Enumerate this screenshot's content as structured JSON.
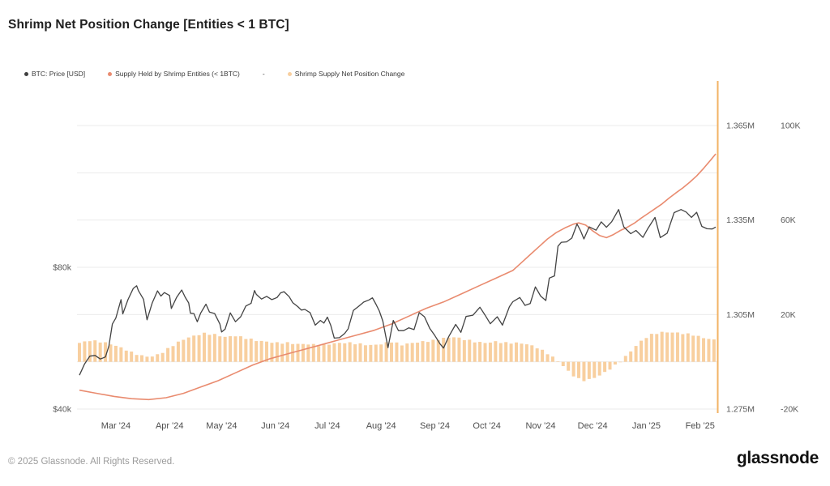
{
  "page": {
    "title": "Shrimp Net Position Change [Entities < 1 BTC]",
    "footer": "© 2025 Glassnode. All Rights Reserved.",
    "brand": "glassnode"
  },
  "legend": [
    {
      "label": "BTC: Price [USD]",
      "color": "#3f3f3f"
    },
    {
      "label": "Supply Held by Shrimp Entities (< 1BTC)",
      "color": "#e98b6f"
    },
    {
      "label": "-",
      "color": null
    },
    {
      "label": "Shrimp Supply Net Position Change",
      "color": "#f8cf9f"
    }
  ],
  "chart_data": {
    "type": "line+bar",
    "x_unit": "days since 2024-02-09",
    "x_ticks": [
      {
        "label": "Mar '24",
        "day": 21
      },
      {
        "label": "Apr '24",
        "day": 52
      },
      {
        "label": "May '24",
        "day": 82
      },
      {
        "label": "Jun '24",
        "day": 113
      },
      {
        "label": "Jul '24",
        "day": 143
      },
      {
        "label": "Aug '24",
        "day": 174
      },
      {
        "label": "Sep '24",
        "day": 205
      },
      {
        "label": "Oct '24",
        "day": 235
      },
      {
        "label": "Nov '24",
        "day": 266
      },
      {
        "label": "Dec '24",
        "day": 296
      },
      {
        "label": "Jan '25",
        "day": 327
      },
      {
        "label": "Feb '25",
        "day": 358
      }
    ],
    "axes": {
      "price_left": {
        "scale": "log2",
        "unit": "USD (thousands)",
        "labels": [
          {
            "text": "$80k",
            "value": 80
          },
          {
            "text": "$40k",
            "value": 40
          }
        ]
      },
      "supply_right": {
        "scale": "linear",
        "unit": "BTC (millions)",
        "labels": [
          {
            "text": "1.365M",
            "value": 1.365
          },
          {
            "text": "1.335M",
            "value": 1.335
          },
          {
            "text": "1.305M",
            "value": 1.305
          },
          {
            "text": "1.275M",
            "value": 1.275
          }
        ]
      },
      "net_right": {
        "scale": "linear",
        "unit": "BTC (thousands)",
        "labels": [
          {
            "text": "100K",
            "value": 100
          },
          {
            "text": "60K",
            "value": 60
          },
          {
            "text": "20K",
            "value": 20
          },
          {
            "text": "-20K",
            "value": -20
          }
        ]
      }
    },
    "colors": {
      "price_line": "#434343",
      "supply_line": "#e98b6f",
      "net_bars": "#f8cf9f",
      "gridline": "#ebebeb",
      "edge_line": "#f2b263",
      "axis_text": "#5a5a5a",
      "tick_text": "#4d4d4d"
    },
    "series": {
      "btc_price_usd_k": {
        "name": "BTC: Price [USD]",
        "kind": "line",
        "points": [
          [
            0,
            47.2
          ],
          [
            3,
            49.9
          ],
          [
            6,
            51.8
          ],
          [
            9,
            52.0
          ],
          [
            12,
            51.1
          ],
          [
            15,
            51.6
          ],
          [
            17,
            54.5
          ],
          [
            19,
            60.6
          ],
          [
            21,
            62.4
          ],
          [
            24,
            68.3
          ],
          [
            25,
            63.7
          ],
          [
            28,
            68.3
          ],
          [
            31,
            72.1
          ],
          [
            33,
            73.1
          ],
          [
            34,
            71.4
          ],
          [
            37,
            68.4
          ],
          [
            39,
            61.9
          ],
          [
            42,
            67.2
          ],
          [
            45,
            71.3
          ],
          [
            47,
            69.5
          ],
          [
            49,
            70.7
          ],
          [
            52,
            69.7
          ],
          [
            53,
            65.4
          ],
          [
            56,
            69.0
          ],
          [
            59,
            71.6
          ],
          [
            61,
            69.1
          ],
          [
            63,
            67.2
          ],
          [
            64,
            63.9
          ],
          [
            66,
            63.8
          ],
          [
            68,
            61.3
          ],
          [
            70,
            64.0
          ],
          [
            73,
            66.8
          ],
          [
            75,
            64.3
          ],
          [
            78,
            63.8
          ],
          [
            81,
            60.6
          ],
          [
            82,
            58.3
          ],
          [
            84,
            59.1
          ],
          [
            87,
            64.0
          ],
          [
            90,
            61.3
          ],
          [
            93,
            62.8
          ],
          [
            96,
            66.2
          ],
          [
            99,
            67.1
          ],
          [
            101,
            71.4
          ],
          [
            102,
            70.1
          ],
          [
            105,
            68.5
          ],
          [
            108,
            69.4
          ],
          [
            111,
            68.3
          ],
          [
            114,
            69.0
          ],
          [
            116,
            70.6
          ],
          [
            118,
            71.0
          ],
          [
            121,
            69.3
          ],
          [
            123,
            67.3
          ],
          [
            126,
            66.0
          ],
          [
            128,
            64.9
          ],
          [
            130,
            65.1
          ],
          [
            133,
            64.1
          ],
          [
            136,
            60.3
          ],
          [
            139,
            61.7
          ],
          [
            141,
            60.9
          ],
          [
            143,
            62.7
          ],
          [
            145,
            60.2
          ],
          [
            147,
            56.6
          ],
          [
            150,
            56.7
          ],
          [
            153,
            57.9
          ],
          [
            155,
            59.2
          ],
          [
            158,
            64.8
          ],
          [
            161,
            66.1
          ],
          [
            164,
            67.5
          ],
          [
            167,
            68.2
          ],
          [
            169,
            68.9
          ],
          [
            171,
            66.8
          ],
          [
            173,
            64.6
          ],
          [
            175,
            61.5
          ],
          [
            178,
            54.0
          ],
          [
            181,
            61.7
          ],
          [
            184,
            58.7
          ],
          [
            187,
            58.7
          ],
          [
            190,
            59.5
          ],
          [
            193,
            59.0
          ],
          [
            196,
            64.1
          ],
          [
            199,
            62.8
          ],
          [
            202,
            59.4
          ],
          [
            205,
            57.3
          ],
          [
            208,
            55.0
          ],
          [
            210,
            53.9
          ],
          [
            213,
            57.0
          ],
          [
            217,
            60.5
          ],
          [
            220,
            58.2
          ],
          [
            223,
            62.9
          ],
          [
            227,
            63.3
          ],
          [
            231,
            65.8
          ],
          [
            234,
            63.3
          ],
          [
            237,
            60.7
          ],
          [
            241,
            62.8
          ],
          [
            244,
            60.3
          ],
          [
            248,
            66.0
          ],
          [
            250,
            67.6
          ],
          [
            254,
            69.0
          ],
          [
            257,
            66.4
          ],
          [
            260,
            67.0
          ],
          [
            263,
            72.7
          ],
          [
            266,
            69.5
          ],
          [
            269,
            68.0
          ],
          [
            271,
            75.9
          ],
          [
            274,
            76.7
          ],
          [
            276,
            88.7
          ],
          [
            278,
            90.4
          ],
          [
            281,
            90.6
          ],
          [
            284,
            92.3
          ],
          [
            287,
            98.9
          ],
          [
            289,
            95.7
          ],
          [
            291,
            91.9
          ],
          [
            294,
            97.5
          ],
          [
            298,
            95.9
          ],
          [
            301,
            99.9
          ],
          [
            304,
            97.3
          ],
          [
            307,
            100.0
          ],
          [
            311,
            106.1
          ],
          [
            314,
            97.5
          ],
          [
            318,
            94.3
          ],
          [
            321,
            95.8
          ],
          [
            325,
            92.6
          ],
          [
            328,
            96.9
          ],
          [
            332,
            102.1
          ],
          [
            335,
            92.5
          ],
          [
            339,
            94.5
          ],
          [
            343,
            104.5
          ],
          [
            347,
            106.1
          ],
          [
            350,
            104.8
          ],
          [
            353,
            102.1
          ],
          [
            356,
            104.7
          ],
          [
            359,
            97.7
          ],
          [
            362,
            96.6
          ],
          [
            365,
            96.5
          ],
          [
            367,
            97.4
          ]
        ]
      },
      "shrimp_supply_m": {
        "name": "Supply Held by Shrimp Entities (< 1BTC)",
        "kind": "line",
        "points": [
          [
            0,
            1.281
          ],
          [
            10,
            1.28
          ],
          [
            20,
            1.279
          ],
          [
            30,
            1.2783
          ],
          [
            40,
            1.278
          ],
          [
            50,
            1.2786
          ],
          [
            60,
            1.28
          ],
          [
            70,
            1.282
          ],
          [
            80,
            1.284
          ],
          [
            90,
            1.2865
          ],
          [
            100,
            1.289
          ],
          [
            110,
            1.291
          ],
          [
            120,
            1.2925
          ],
          [
            130,
            1.294
          ],
          [
            140,
            1.2955
          ],
          [
            150,
            1.297
          ],
          [
            160,
            1.2985
          ],
          [
            170,
            1.3
          ],
          [
            180,
            1.302
          ],
          [
            190,
            1.3045
          ],
          [
            200,
            1.307
          ],
          [
            210,
            1.309
          ],
          [
            220,
            1.3115
          ],
          [
            230,
            1.314
          ],
          [
            240,
            1.3165
          ],
          [
            250,
            1.319
          ],
          [
            255,
            1.3215
          ],
          [
            260,
            1.324
          ],
          [
            265,
            1.3265
          ],
          [
            270,
            1.329
          ],
          [
            275,
            1.331
          ],
          [
            280,
            1.3325
          ],
          [
            285,
            1.3337
          ],
          [
            288,
            1.3341
          ],
          [
            292,
            1.3334
          ],
          [
            296,
            1.3316
          ],
          [
            300,
            1.3301
          ],
          [
            304,
            1.3294
          ],
          [
            308,
            1.3304
          ],
          [
            312,
            1.3317
          ],
          [
            316,
            1.3327
          ],
          [
            320,
            1.334
          ],
          [
            324,
            1.3356
          ],
          [
            328,
            1.3371
          ],
          [
            332,
            1.3386
          ],
          [
            336,
            1.3401
          ],
          [
            340,
            1.3419
          ],
          [
            344,
            1.3436
          ],
          [
            348,
            1.3452
          ],
          [
            352,
            1.347
          ],
          [
            356,
            1.349
          ],
          [
            360,
            1.3514
          ],
          [
            364,
            1.354
          ],
          [
            367,
            1.356
          ]
        ]
      },
      "net_position_change_k": {
        "name": "Shrimp Supply Net Position Change",
        "kind": "bar",
        "bar_interval_days": 3,
        "points": [
          [
            0,
            8
          ],
          [
            6,
            9
          ],
          [
            12,
            8.5
          ],
          [
            18,
            7.5
          ],
          [
            24,
            6
          ],
          [
            30,
            4
          ],
          [
            36,
            2.5
          ],
          [
            42,
            2.2
          ],
          [
            48,
            4
          ],
          [
            54,
            7
          ],
          [
            60,
            9.5
          ],
          [
            66,
            11
          ],
          [
            72,
            12
          ],
          [
            78,
            11.5
          ],
          [
            84,
            10.5
          ],
          [
            90,
            11
          ],
          [
            96,
            10
          ],
          [
            102,
            9
          ],
          [
            108,
            8.5
          ],
          [
            114,
            8
          ],
          [
            120,
            8
          ],
          [
            126,
            7.5
          ],
          [
            132,
            7.5
          ],
          [
            138,
            7
          ],
          [
            144,
            7.5
          ],
          [
            150,
            8
          ],
          [
            156,
            8
          ],
          [
            162,
            7.5
          ],
          [
            168,
            7
          ],
          [
            174,
            7.5
          ],
          [
            180,
            8.5
          ],
          [
            186,
            7.2
          ],
          [
            192,
            8
          ],
          [
            198,
            8.5
          ],
          [
            204,
            9
          ],
          [
            210,
            10
          ],
          [
            216,
            10.5
          ],
          [
            222,
            9.5
          ],
          [
            228,
            8.5
          ],
          [
            234,
            8
          ],
          [
            240,
            8.5
          ],
          [
            246,
            8
          ],
          [
            252,
            8
          ],
          [
            258,
            7.5
          ],
          [
            264,
            6
          ],
          [
            270,
            3.5
          ],
          [
            274,
            1.5
          ],
          [
            278,
            -1
          ],
          [
            282,
            -4
          ],
          [
            286,
            -6.5
          ],
          [
            290,
            -8
          ],
          [
            294,
            -7.5
          ],
          [
            298,
            -6.5
          ],
          [
            302,
            -5
          ],
          [
            306,
            -3
          ],
          [
            310,
            -1
          ],
          [
            314,
            1.5
          ],
          [
            318,
            4.5
          ],
          [
            322,
            7.5
          ],
          [
            326,
            10
          ],
          [
            330,
            11.5
          ],
          [
            334,
            12.3
          ],
          [
            338,
            12.6
          ],
          [
            342,
            12.4
          ],
          [
            346,
            12.2
          ],
          [
            350,
            11.8
          ],
          [
            354,
            11.4
          ],
          [
            358,
            10.5
          ],
          [
            362,
            9.8
          ],
          [
            367,
            9.2
          ]
        ]
      }
    }
  }
}
